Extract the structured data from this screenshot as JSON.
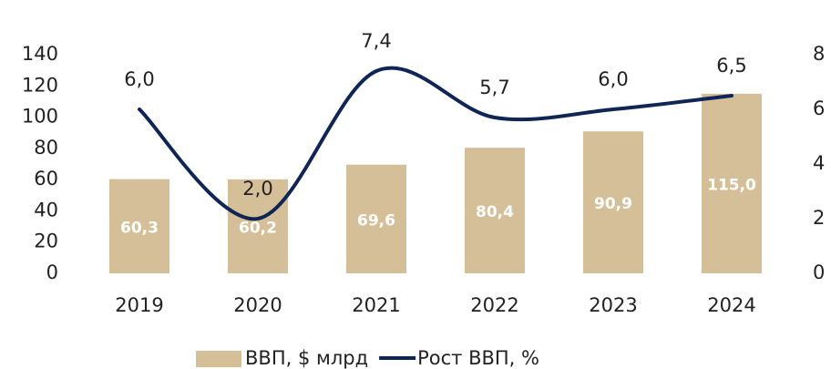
{
  "chart_data": {
    "type": "bar_line",
    "categories": [
      "2019",
      "2020",
      "2021",
      "2022",
      "2023",
      "2024"
    ],
    "series": [
      {
        "name": "ВВП, $ млрд",
        "type": "bar",
        "color": "#d5bf98",
        "values": [
          60.3,
          60.2,
          69.6,
          80.4,
          90.9,
          115.0
        ],
        "value_labels": [
          "60,3",
          "60,2",
          "69,6",
          "80,4",
          "90,9",
          "115,0"
        ]
      },
      {
        "name": "Рост ВВП, %",
        "type": "line",
        "axis": "y2",
        "color": "#0f2556",
        "values": [
          6.0,
          2.0,
          7.4,
          5.7,
          6.0,
          6.5
        ],
        "value_labels": [
          "6,0",
          "2,0",
          "7,4",
          "5,7",
          "6,0",
          "6,5"
        ]
      }
    ],
    "ylim": [
      0,
      140
    ],
    "yticks": [
      0,
      20,
      40,
      60,
      80,
      100,
      120,
      140
    ],
    "y2lim": [
      0,
      8
    ],
    "y2ticks": [
      0,
      2,
      4,
      6,
      8
    ],
    "legend": "bottom"
  }
}
